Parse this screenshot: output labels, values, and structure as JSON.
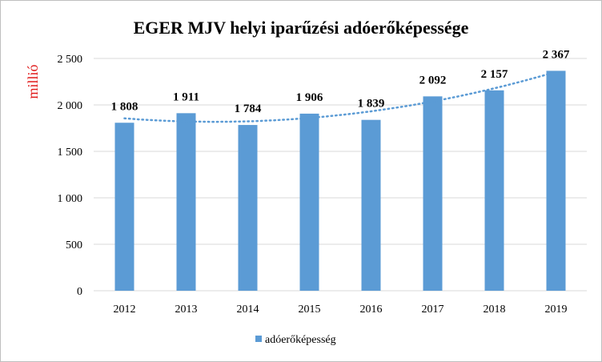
{
  "chart_data": {
    "type": "bar",
    "title": "EGER MJV helyi iparűzési adóerőképessége",
    "ylabel": "millió",
    "xlabel": "",
    "categories": [
      "2012",
      "2013",
      "2014",
      "2015",
      "2016",
      "2017",
      "2018",
      "2019"
    ],
    "series": [
      {
        "name": "adóerőképesség",
        "values": [
          1808,
          1911,
          1784,
          1906,
          1839,
          2092,
          2157,
          2367
        ],
        "value_labels": [
          "1 808",
          "1 911",
          "1 784",
          "1 906",
          "1 839",
          "2 092",
          "2 157",
          "2 367"
        ],
        "color": "#5b9bd5"
      }
    ],
    "trendline": {
      "type": "polynomial",
      "style": "dotted",
      "color": "#5b9bd5"
    },
    "ylim": [
      0,
      2500
    ],
    "yticks": [
      0,
      500,
      1000,
      1500,
      2000,
      2500
    ],
    "ytick_labels": [
      "0",
      "500",
      "1 000",
      "1 500",
      "2 000",
      "2 500"
    ],
    "grid": true,
    "legend": "bottom",
    "colors": {
      "bar": "#5b9bd5",
      "grid": "#d9d9d9",
      "ylabel": "#e01a1a"
    }
  }
}
